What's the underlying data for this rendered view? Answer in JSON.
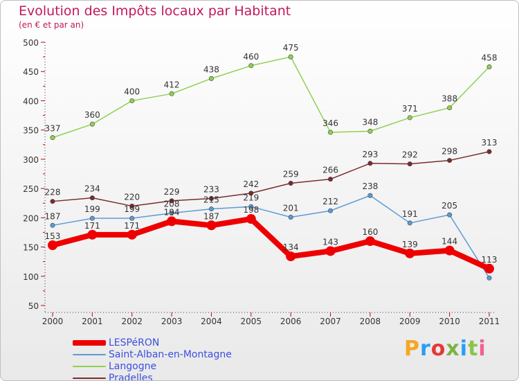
{
  "header": {
    "title": "Evolution des Impôts locaux par Habitant",
    "subtitle": "(en € et par an)"
  },
  "logo": {
    "text": "Proxiti",
    "colors": [
      "#f5a623",
      "#2a9df4",
      "#e53935",
      "#7cb342",
      "#2a9df4",
      "#8bc34a",
      "#f06292"
    ]
  },
  "chart_data": {
    "type": "line",
    "title": "Evolution des Impôts locaux par Habitant",
    "subtitle": "(en € et par an)",
    "x": [
      "2000",
      "2001",
      "2002",
      "2003",
      "2004",
      "2005",
      "2006",
      "2007",
      "2008",
      "2009",
      "2010",
      "2011"
    ],
    "ylim": [
      50,
      500
    ],
    "yticks": [
      50,
      100,
      150,
      200,
      250,
      300,
      350,
      400,
      450,
      500
    ],
    "grid": false,
    "legend_position": "bottom-left",
    "series": [
      {
        "name": "LESPéRON",
        "color": "#ee0000",
        "values": [
          153,
          171,
          171,
          194,
          187,
          198,
          134,
          143,
          160,
          139,
          144,
          113
        ],
        "labels": [
          "153",
          "171",
          "171",
          "194",
          "187",
          "198",
          "134",
          "143",
          "160",
          "139",
          "144",
          "113"
        ]
      },
      {
        "name": "Saint-Alban-en-Montagne",
        "color": "#5b9bd5",
        "values": [
          187,
          199,
          199,
          208,
          215,
          219,
          201,
          212,
          238,
          191,
          205,
          97
        ],
        "labels": [
          "187",
          "199",
          "199",
          "208",
          "215",
          "219",
          "201",
          "212",
          "238",
          "191",
          "205",
          ""
        ]
      },
      {
        "name": "Langogne",
        "color": "#8fd14f",
        "values": [
          337,
          360,
          400,
          412,
          438,
          460,
          475,
          346,
          348,
          371,
          388,
          458
        ],
        "labels": [
          "337",
          "360",
          "400",
          "412",
          "438",
          "460",
          "475",
          "346",
          "348",
          "371",
          "388",
          "458"
        ]
      },
      {
        "name": "Pradelles",
        "color": "#7b2c2c",
        "values": [
          228,
          234,
          220,
          229,
          233,
          242,
          259,
          266,
          293,
          292,
          298,
          313
        ],
        "labels": [
          "228",
          "234",
          "220",
          "229",
          "233",
          "242",
          "259",
          "266",
          "293",
          "292",
          "298",
          "313"
        ]
      }
    ]
  }
}
